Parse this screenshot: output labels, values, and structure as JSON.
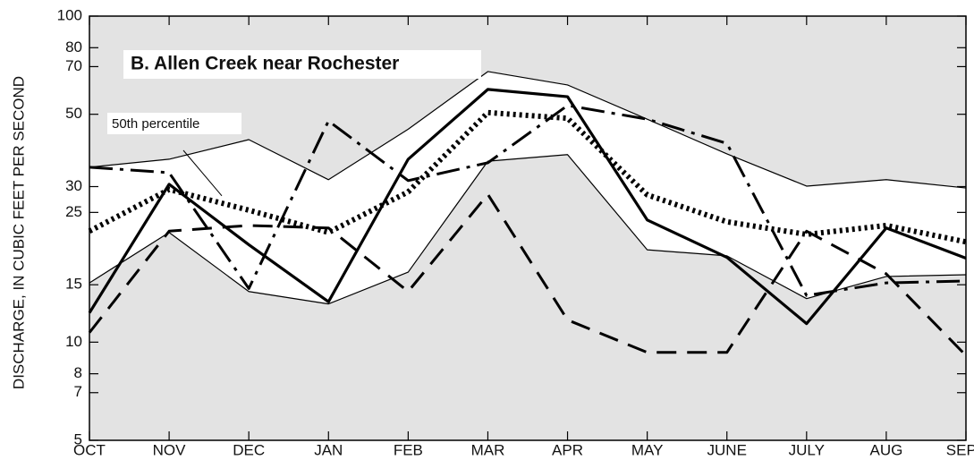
{
  "chart_data": {
    "type": "line",
    "title": "B. Allen Creek near Rochester",
    "y_label": "DISCHARGE, IN CUBIC FEET PER SECOND",
    "annotation": "50th percentile",
    "annotation_series": 2,
    "log_y": true,
    "background": "#e3e3e3",
    "band_fill": "#ffffff",
    "fill_between": [
      0,
      1
    ],
    "categories": [
      "OCT",
      "NOV",
      "DEC",
      "JAN",
      "FEB",
      "MAR",
      "APR",
      "MAY",
      "JUNE",
      "JULY",
      "AUG",
      "SEPT"
    ],
    "series": [
      {
        "color": "#000000",
        "width": 1.2,
        "dash": "solid",
        "values": [
          34.4,
          36.4,
          41.8,
          31.5,
          45,
          67.6,
          61.5,
          48.3,
          37.8,
          30.1,
          31.5,
          29.7
        ]
      },
      {
        "color": "#000000",
        "width": 1.2,
        "dash": "solid",
        "values": [
          15.2,
          21.7,
          14.3,
          13.1,
          16.4,
          35.9,
          37.6,
          19.2,
          18.4,
          13.6,
          15.9,
          16.1
        ]
      },
      {
        "color": "#000000",
        "width": 6,
        "dash": "dotted",
        "values": [
          21.9,
          29.4,
          25.4,
          21.7,
          28.9,
          50.6,
          48.6,
          28.3,
          23.4,
          21.4,
          22.8,
          20.3
        ]
      },
      {
        "color": "#000000",
        "width": 3.2,
        "dash": "solid",
        "values": [
          12.3,
          30.5,
          19.9,
          13.3,
          36.4,
          59.6,
          56.6,
          23.7,
          18.2,
          11.4,
          22.4,
          18.1
        ]
      },
      {
        "color": "#000000",
        "width": 3,
        "dash": "dashdot",
        "values": [
          34.4,
          33.1,
          14.6,
          47.7,
          31.3,
          35.5,
          53.2,
          48.3,
          40.7,
          13.9,
          15.2,
          15.4
        ]
      },
      {
        "color": "#000000",
        "width": 3,
        "dash": "dashed",
        "values": [
          10.7,
          21.9,
          22.8,
          22.4,
          14.3,
          28.4,
          11.7,
          9.3,
          9.3,
          21.9,
          16.2,
          9.1
        ]
      }
    ],
    "ylim": [
      5,
      100
    ],
    "yticks": [
      5,
      7,
      8,
      10,
      15,
      25,
      30,
      50,
      70,
      80,
      100
    ]
  }
}
